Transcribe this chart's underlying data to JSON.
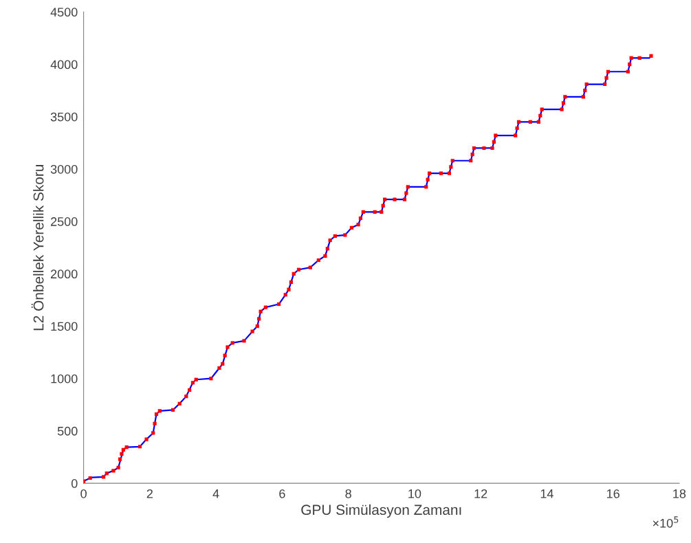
{
  "chart_data": {
    "type": "line",
    "xlabel": "GPU Simülasyon Zamanı",
    "ylabel": "L2 Önbellek Yerellik Skoru",
    "xlim": [
      0,
      18
    ],
    "xticks": [
      0,
      2,
      4,
      6,
      8,
      10,
      12,
      14,
      16,
      18
    ],
    "ylim": [
      0,
      4500
    ],
    "yticks": [
      0,
      500,
      1000,
      1500,
      2000,
      2500,
      3000,
      3500,
      4000,
      4500
    ],
    "grid": false,
    "annotations": [
      "×10$^{5}$"
    ],
    "series": [
      {
        "color": "#0000ff",
        "line_style": "solid",
        "marker": "none",
        "x": [
          0,
          0.2,
          0.25,
          0.6,
          0.7,
          0.9,
          1.05,
          1.2,
          1.3,
          1.7,
          1.9,
          2.1,
          2.2,
          2.3,
          2.7,
          2.9,
          3.1,
          3.3,
          3.4,
          3.85,
          4.1,
          4.2,
          4.35,
          4.5,
          4.85,
          5.1,
          5.25,
          5.35,
          5.5,
          5.9,
          6.1,
          6.2,
          6.35,
          6.5,
          6.85,
          7.1,
          7.3,
          7.45,
          7.6,
          7.9,
          8.1,
          8.3,
          8.45,
          9.0,
          9.1,
          9.7,
          9.8,
          10.35,
          10.45,
          11.05,
          11.15,
          11.7,
          11.8,
          12.35,
          12.45,
          13.05,
          13.15,
          13.75,
          13.85,
          14.45,
          14.55,
          15.1,
          15.2,
          15.75,
          15.85,
          16.45,
          16.55,
          17.1,
          17.15
        ],
        "values": [
          20,
          50,
          55,
          60,
          95,
          120,
          150,
          320,
          345,
          350,
          420,
          480,
          660,
          690,
          700,
          760,
          830,
          960,
          990,
          1000,
          1100,
          1140,
          1300,
          1340,
          1360,
          1450,
          1500,
          1640,
          1680,
          1710,
          1800,
          1850,
          2000,
          2040,
          2060,
          2130,
          2170,
          2320,
          2360,
          2370,
          2440,
          2470,
          2590,
          2590,
          2710,
          2710,
          2830,
          2830,
          2960,
          2960,
          3080,
          3080,
          3200,
          3200,
          3320,
          3320,
          3450,
          3450,
          3570,
          3570,
          3690,
          3690,
          3810,
          3810,
          3930,
          3930,
          4060,
          4060,
          4080
        ]
      },
      {
        "type": "scatter",
        "color": "#ff0000",
        "marker": "square",
        "x": [
          0,
          0.2,
          0.6,
          0.7,
          0.9,
          1.05,
          1.1,
          1.15,
          1.2,
          1.3,
          1.7,
          1.9,
          2.1,
          2.15,
          2.2,
          2.3,
          2.7,
          2.9,
          3.1,
          3.2,
          3.3,
          3.4,
          3.85,
          4.1,
          4.2,
          4.27,
          4.35,
          4.5,
          4.85,
          5.1,
          5.25,
          5.3,
          5.35,
          5.5,
          5.9,
          6.1,
          6.2,
          6.27,
          6.35,
          6.5,
          6.85,
          7.1,
          7.3,
          7.37,
          7.45,
          7.6,
          7.9,
          8.1,
          8.3,
          8.37,
          8.45,
          8.8,
          9.0,
          9.05,
          9.1,
          9.4,
          9.7,
          9.75,
          9.8,
          10.35,
          10.4,
          10.45,
          10.8,
          11.05,
          11.1,
          11.15,
          11.7,
          11.75,
          11.8,
          12.1,
          12.35,
          12.4,
          12.45,
          13.05,
          13.1,
          13.15,
          13.5,
          13.75,
          13.8,
          13.85,
          14.45,
          14.5,
          14.55,
          15.1,
          15.15,
          15.2,
          15.75,
          15.8,
          15.85,
          16.45,
          16.5,
          16.55,
          16.8,
          17.15
        ],
        "values": [
          20,
          50,
          60,
          95,
          120,
          150,
          230,
          280,
          320,
          345,
          350,
          420,
          480,
          570,
          660,
          690,
          700,
          760,
          830,
          890,
          960,
          990,
          1000,
          1100,
          1140,
          1220,
          1300,
          1340,
          1360,
          1450,
          1500,
          1570,
          1640,
          1680,
          1710,
          1800,
          1850,
          1920,
          2000,
          2040,
          2060,
          2130,
          2170,
          2240,
          2320,
          2360,
          2370,
          2440,
          2470,
          2530,
          2590,
          2590,
          2590,
          2650,
          2710,
          2710,
          2710,
          2770,
          2830,
          2830,
          2900,
          2960,
          2960,
          2960,
          3020,
          3080,
          3080,
          3140,
          3200,
          3200,
          3200,
          3260,
          3320,
          3320,
          3390,
          3450,
          3450,
          3450,
          3510,
          3570,
          3570,
          3630,
          3690,
          3690,
          3750,
          3810,
          3810,
          3870,
          3930,
          3930,
          4000,
          4060,
          4060,
          4080
        ]
      }
    ]
  }
}
